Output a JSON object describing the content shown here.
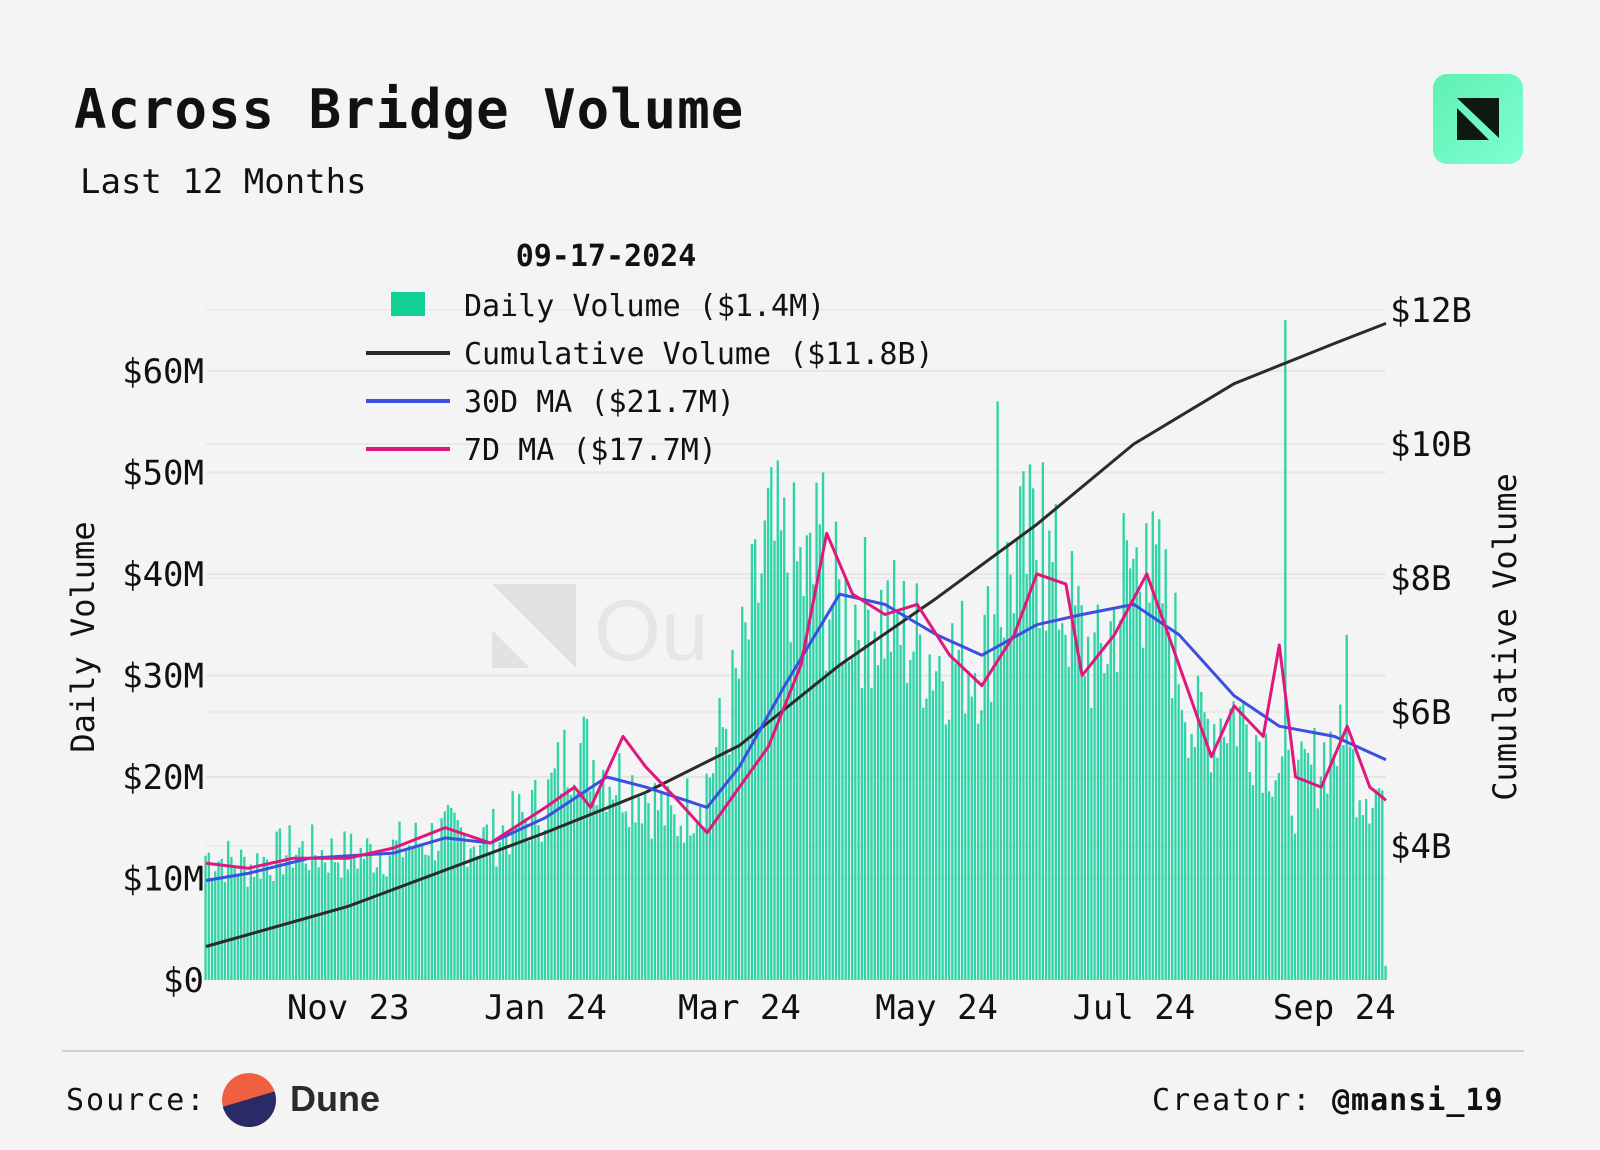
{
  "header": {
    "title": "Across Bridge Volume",
    "subtitle": "Last 12 Months"
  },
  "colors": {
    "bar": "#2fd3a6",
    "cumulative": "#2b2b2b",
    "ma30": "#3d4fe0",
    "ma7": "#e0187e",
    "legend_swatch": "#12cf95",
    "grid": "#e6e6e6"
  },
  "legend": {
    "date": "09-17-2024",
    "items": [
      {
        "label": "Daily Volume ($1.4M)",
        "key": "daily"
      },
      {
        "label": "Cumulative Volume ($11.8B)",
        "key": "cumulative"
      },
      {
        "label": "30D MA ($21.7M)",
        "key": "ma30"
      },
      {
        "label": "7D MA ($17.7M)",
        "key": "ma7"
      }
    ]
  },
  "watermark": {
    "text": "Ou"
  },
  "chart_data": {
    "type": "bar",
    "title": "Across Bridge Volume",
    "subtitle": "Last 12 Months",
    "ylabel": "Daily Volume",
    "y2label": "Cumulative Volume",
    "ylim": [
      0,
      66
    ],
    "y_unit": "M",
    "y2lim": [
      2.0,
      12.0
    ],
    "y2_unit": "B",
    "y_ticks": [
      {
        "v": 0,
        "label": "$0"
      },
      {
        "v": 10,
        "label": "$10M"
      },
      {
        "v": 20,
        "label": "$20M"
      },
      {
        "v": 30,
        "label": "$30M"
      },
      {
        "v": 40,
        "label": "$40M"
      },
      {
        "v": 50,
        "label": "$50M"
      },
      {
        "v": 60,
        "label": "$60M"
      }
    ],
    "y2_ticks": [
      {
        "v": 4,
        "label": "$4B"
      },
      {
        "v": 6,
        "label": "$6B"
      },
      {
        "v": 8,
        "label": "$8B"
      },
      {
        "v": 10,
        "label": "$10B"
      },
      {
        "v": 12,
        "label": "$12B"
      }
    ],
    "x_range": [
      "2023-09-18",
      "2024-09-17"
    ],
    "x_ticks": [
      {
        "date": "2023-11-01",
        "label": "Nov 23"
      },
      {
        "date": "2024-01-01",
        "label": "Jan 24"
      },
      {
        "date": "2024-03-01",
        "label": "Mar 24"
      },
      {
        "date": "2024-05-01",
        "label": "May 24"
      },
      {
        "date": "2024-07-01",
        "label": "Jul 24"
      },
      {
        "date": "2024-09-01",
        "label": "Sep 24"
      }
    ],
    "grid": true,
    "legend_position": "top-left",
    "series": [
      {
        "name": "Daily Volume",
        "type": "bar",
        "axis": "left",
        "unit": "M USD",
        "anchors": [
          [
            "2023-09-18",
            12
          ],
          [
            "2023-10-01",
            11
          ],
          [
            "2023-10-15",
            12.5
          ],
          [
            "2023-11-01",
            12
          ],
          [
            "2023-11-15",
            12.5
          ],
          [
            "2023-12-01",
            14
          ],
          [
            "2023-12-15",
            13.5
          ],
          [
            "2024-01-01",
            17
          ],
          [
            "2024-01-10",
            23
          ],
          [
            "2024-01-20",
            20
          ],
          [
            "2024-02-01",
            18
          ],
          [
            "2024-02-10",
            15
          ],
          [
            "2024-02-20",
            19
          ],
          [
            "2024-03-01",
            29
          ],
          [
            "2024-03-10",
            42
          ],
          [
            "2024-03-20",
            39
          ],
          [
            "2024-04-01",
            36
          ],
          [
            "2024-04-15",
            35
          ],
          [
            "2024-05-01",
            31
          ],
          [
            "2024-05-15",
            31
          ],
          [
            "2024-05-25",
            40
          ],
          [
            "2024-06-01",
            42
          ],
          [
            "2024-06-10",
            36
          ],
          [
            "2024-06-20",
            30
          ],
          [
            "2024-07-01",
            40
          ],
          [
            "2024-07-10",
            37
          ],
          [
            "2024-07-20",
            24
          ],
          [
            "2024-08-01",
            26
          ],
          [
            "2024-08-10",
            23
          ],
          [
            "2024-08-20",
            18
          ],
          [
            "2024-09-01",
            23
          ],
          [
            "2024-09-10",
            19
          ],
          [
            "2024-09-16",
            18
          ],
          [
            "2024-09-17",
            1.4
          ]
        ]
      },
      {
        "name": "Cumulative Volume",
        "type": "line",
        "axis": "right",
        "unit": "B USD",
        "points": [
          [
            "2023-09-18",
            2.5
          ],
          [
            "2023-11-01",
            3.1
          ],
          [
            "2024-01-01",
            4.2
          ],
          [
            "2024-02-01",
            4.8
          ],
          [
            "2024-03-01",
            5.5
          ],
          [
            "2024-04-01",
            6.7
          ],
          [
            "2024-05-01",
            7.7
          ],
          [
            "2024-06-01",
            8.8
          ],
          [
            "2024-07-01",
            10.0
          ],
          [
            "2024-08-01",
            10.9
          ],
          [
            "2024-09-01",
            11.5
          ],
          [
            "2024-09-17",
            11.8
          ]
        ]
      },
      {
        "name": "30D MA",
        "type": "line",
        "axis": "left",
        "unit": "M USD",
        "points": [
          [
            "2023-09-18",
            9.8
          ],
          [
            "2023-10-01",
            10.5
          ],
          [
            "2023-10-20",
            12
          ],
          [
            "2023-11-15",
            12.5
          ],
          [
            "2023-12-01",
            14
          ],
          [
            "2023-12-15",
            13.5
          ],
          [
            "2024-01-01",
            16
          ],
          [
            "2024-01-20",
            20
          ],
          [
            "2024-02-01",
            19
          ],
          [
            "2024-02-20",
            17
          ],
          [
            "2024-03-01",
            21
          ],
          [
            "2024-03-15",
            29
          ],
          [
            "2024-04-01",
            38
          ],
          [
            "2024-04-15",
            37
          ],
          [
            "2024-05-01",
            34
          ],
          [
            "2024-05-15",
            32
          ],
          [
            "2024-06-01",
            35
          ],
          [
            "2024-06-15",
            36
          ],
          [
            "2024-07-01",
            37
          ],
          [
            "2024-07-15",
            34
          ],
          [
            "2024-08-01",
            28
          ],
          [
            "2024-08-15",
            25
          ],
          [
            "2024-09-01",
            24
          ],
          [
            "2024-09-17",
            21.7
          ]
        ]
      },
      {
        "name": "7D MA",
        "type": "line",
        "axis": "left",
        "unit": "M USD",
        "points": [
          [
            "2023-09-18",
            11.5
          ],
          [
            "2023-10-01",
            11
          ],
          [
            "2023-10-15",
            12
          ],
          [
            "2023-11-01",
            12
          ],
          [
            "2023-11-15",
            13
          ],
          [
            "2023-12-01",
            15
          ],
          [
            "2023-12-15",
            13.5
          ],
          [
            "2024-01-01",
            17
          ],
          [
            "2024-01-10",
            19
          ],
          [
            "2024-01-15",
            17
          ],
          [
            "2024-01-25",
            24
          ],
          [
            "2024-02-01",
            21
          ],
          [
            "2024-02-10",
            18
          ],
          [
            "2024-02-20",
            14.5
          ],
          [
            "2024-03-01",
            19
          ],
          [
            "2024-03-10",
            23
          ],
          [
            "2024-03-20",
            31
          ],
          [
            "2024-03-28",
            44
          ],
          [
            "2024-04-05",
            38
          ],
          [
            "2024-04-15",
            36
          ],
          [
            "2024-04-25",
            37
          ],
          [
            "2024-05-05",
            32
          ],
          [
            "2024-05-15",
            29
          ],
          [
            "2024-05-25",
            34
          ],
          [
            "2024-06-01",
            40
          ],
          [
            "2024-06-10",
            39
          ],
          [
            "2024-06-15",
            30
          ],
          [
            "2024-06-25",
            34
          ],
          [
            "2024-07-05",
            40
          ],
          [
            "2024-07-15",
            31
          ],
          [
            "2024-07-25",
            22
          ],
          [
            "2024-08-01",
            27
          ],
          [
            "2024-08-10",
            24
          ],
          [
            "2024-08-15",
            33
          ],
          [
            "2024-08-20",
            20
          ],
          [
            "2024-08-28",
            19
          ],
          [
            "2024-09-05",
            25
          ],
          [
            "2024-09-12",
            19
          ],
          [
            "2024-09-17",
            17.7
          ]
        ]
      }
    ],
    "spikes": [
      [
        "2024-03-25",
        49
      ],
      [
        "2024-03-27",
        50
      ],
      [
        "2024-05-20",
        57
      ],
      [
        "2024-06-03",
        51
      ],
      [
        "2024-06-28",
        46
      ],
      [
        "2024-07-05",
        45
      ],
      [
        "2024-08-17",
        65
      ],
      [
        "2024-09-05",
        34
      ]
    ]
  },
  "footer": {
    "source_label": "Source:",
    "source_name": "Dune",
    "creator_label": "Creator:",
    "creator_handle": "@mansi_19"
  }
}
